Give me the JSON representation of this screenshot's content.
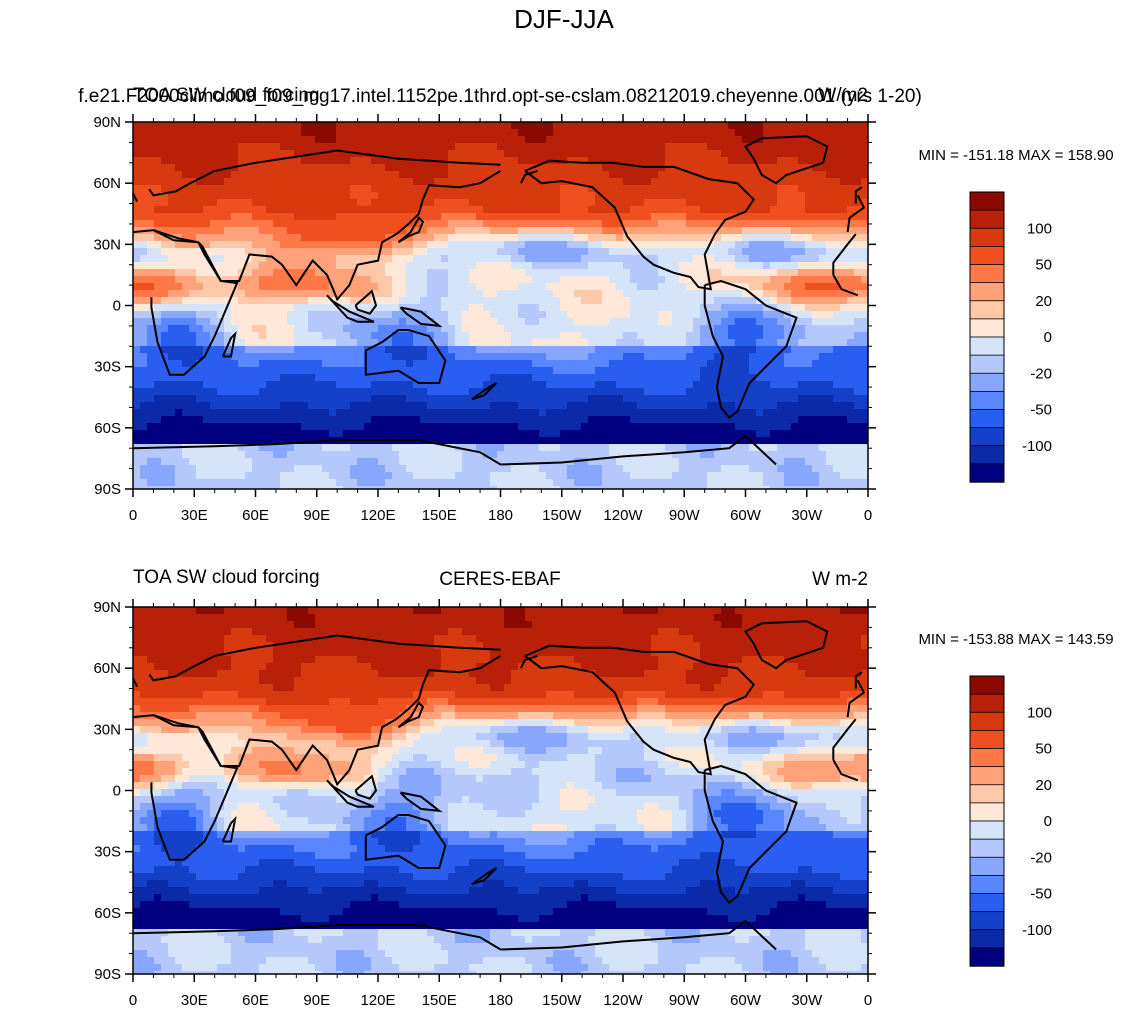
{
  "figure_title": "DJF-JJA",
  "chart_data": [
    {
      "type": "heatmap",
      "subtitle_left": "TOA SW cloud forcing",
      "subtitle_center": "f.e21.F2000climo.f09_f09_mg17.intel.1152pe.1thrd.opt-se-cslam.08212019.cheyenne.001 (yrs 1-20)",
      "subtitle_right": "W/m2",
      "stats_text": "MIN = -151.18 MAX = 158.90",
      "min": -151.18,
      "max": 158.9,
      "x_ticks": [
        "0",
        "30E",
        "60E",
        "90E",
        "120E",
        "150E",
        "180",
        "150W",
        "120W",
        "90W",
        "60W",
        "30W",
        "0"
      ],
      "y_ticks": [
        "90N",
        "60N",
        "30N",
        "0",
        "30S",
        "60S",
        "90S"
      ],
      "xlim": [
        0,
        360
      ],
      "ylim": [
        -90,
        90
      ],
      "colorbar_labels": [
        "100",
        "50",
        "20",
        "0",
        "-20",
        "-50",
        "-100"
      ]
    },
    {
      "type": "heatmap",
      "subtitle_left": "TOA SW cloud forcing",
      "subtitle_center": "CERES-EBAF",
      "subtitle_right": "W m-2",
      "stats_text": "MIN = -153.88 MAX = 143.59",
      "min": -153.88,
      "max": 143.59,
      "x_ticks": [
        "0",
        "30E",
        "60E",
        "90E",
        "120E",
        "150E",
        "180",
        "150W",
        "120W",
        "90W",
        "60W",
        "30W",
        "0"
      ],
      "y_ticks": [
        "90N",
        "60N",
        "30N",
        "0",
        "30S",
        "60S",
        "90S"
      ],
      "xlim": [
        0,
        360
      ],
      "ylim": [
        -90,
        90
      ],
      "colorbar_labels": [
        "100",
        "50",
        "20",
        "0",
        "-20",
        "-50",
        "-100"
      ]
    }
  ],
  "colors": {
    "levels": [
      "#000080",
      "#0a2aa8",
      "#1540c8",
      "#2a5ef0",
      "#5a86ff",
      "#88a8ff",
      "#b4c8fb",
      "#d6e4fa",
      "#ffe8d8",
      "#ffc8a8",
      "#ffa27a",
      "#ff7848",
      "#f05020",
      "#d83a10",
      "#b82008",
      "#8a0a02"
    ],
    "coast": "#000000",
    "frame": "#000000"
  }
}
